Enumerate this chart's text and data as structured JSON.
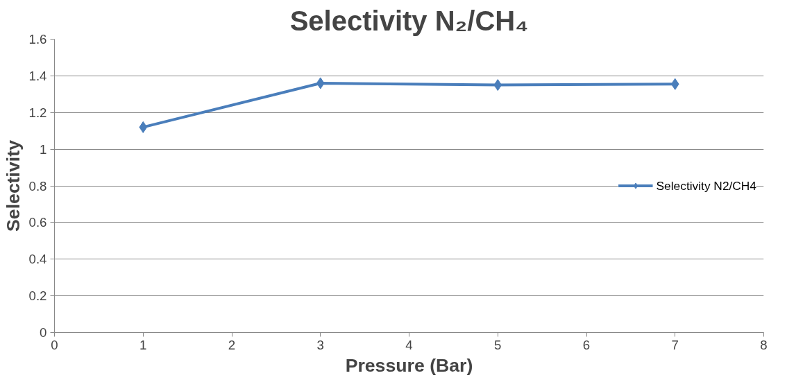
{
  "chart_data": {
    "type": "line",
    "title": "Selectivity N₂/CH₄",
    "xlabel": "Pressure (Bar)",
    "ylabel": "Selectivity",
    "x": [
      1,
      3,
      5,
      7
    ],
    "series": [
      {
        "name": "Selectivity N2/CH4",
        "color": "#4a7ebb",
        "values": [
          1.12,
          1.36,
          1.35,
          1.355
        ]
      }
    ],
    "xlim": [
      0,
      8
    ],
    "xticks": [
      0,
      1,
      2,
      3,
      4,
      5,
      6,
      7,
      8
    ],
    "ylim": [
      0,
      1.6
    ],
    "yticks": [
      0,
      0.2,
      0.4,
      0.6,
      0.8,
      1,
      1.2,
      1.4,
      1.6
    ],
    "grid": "y",
    "legend": "right",
    "marker": "diamond",
    "line_style": "solid"
  }
}
